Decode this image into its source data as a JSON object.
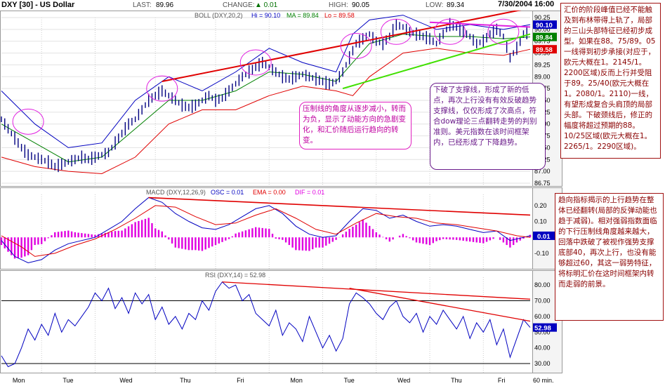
{
  "header": {
    "symbol": "DXY [30] - US Dollar",
    "last_label": "LAST:",
    "last": "89.96",
    "change_label": "CHANGE:",
    "change": "▲ 0.01",
    "high_label": "HIGH:",
    "high": "90.05",
    "low_label": "LOW:",
    "low": "89.34",
    "datetime": "7/30/2004 16:00"
  },
  "colors": {
    "price": "#000080",
    "upper_band": "#0000c0",
    "lower_band": "#e00000",
    "middle_band": "#008000",
    "macd": "#0000c0",
    "ema": "#e00000",
    "hist": "#e000e0",
    "rsi": "#0000c0",
    "trend_red": "#e00000",
    "trend_green": "#40e000",
    "trend_magenta": "#e020e0"
  },
  "annotations": {
    "top_right": "汇价的阶段峰值已经不能触及到布林带得上轨了，局部的三山头部特征已经初步成型。如果在88。75/89。05一线得到初步承接(对应于，欧元大概在1。2145/1。2200区域)反而上行并受阻于89。25/40(欧元大概在1。2080/1。2110)一线，有望形成复合头肩顶的局部头部。下破颈线后，修正的幅度将超过预期的88。10/25区域(欧元大概在1。2265/1。2290区域)。",
    "middle_right": "趋向指标揭示的上行趋势在整体已经翻转(局部的反弹动能也趋于减弱)。相对强弱指数面临的下行压制线角度越来越大，回落中跌破了被视作强势支撑底部40，再次上行，也没有能够超过60，其这一弱势特征，将标明汇价在这时间框架内转而走弱的前景。",
    "pink": "压制线的角度从逐步减小，转而为负，显示了动能方向的急剧变化，和汇价随后运行趋向的转变。",
    "purple": "下破了支撑线，形成了新的低点，再次上行没有有效反破趋势支撑线，仅仅形成了次高点，符合dow理论三点翻转走势的判别准则。美元指数在该时间框架内，已经形成了下降趋势。"
  },
  "chart_data": [
    {
      "type": "line",
      "title": "BOLL (DXY,20,2)",
      "legend": [
        {
          "name": "Hi",
          "value": "90.10",
          "color": "#0000c0"
        },
        {
          "name": "MA",
          "value": "89.84",
          "color": "#008000"
        },
        {
          "name": "Lo",
          "value": "89.58",
          "color": "#e00000"
        }
      ],
      "y_ticks": [
        "90.25",
        "90.00",
        "89.75",
        "89.50",
        "89.25",
        "89.00",
        "88.75",
        "88.50",
        "88.25",
        "88.00",
        "87.75",
        "87.50",
        "87.25",
        "87.00",
        "86.75"
      ],
      "ylim": [
        86.75,
        90.25
      ],
      "x_labels": [
        "Mon",
        "Tue",
        "Wed",
        "Thu",
        "Fri",
        "Mon",
        "Tue",
        "Wed",
        "Thu",
        "Fri"
      ],
      "x_unit": "60 min.",
      "value_labels": [
        {
          "text": "90.10",
          "value": 90.1,
          "color": "#0000c0"
        },
        {
          "text": "89.84",
          "value": 89.84,
          "color": "#008000"
        },
        {
          "text": "89.58",
          "value": 89.58,
          "color": "#e00000"
        }
      ],
      "price_path": [
        [
          0,
          88.1
        ],
        [
          2,
          87.9
        ],
        [
          4,
          87.7
        ],
        [
          6,
          87.5
        ],
        [
          8,
          87.35
        ],
        [
          10,
          87.3
        ],
        [
          12,
          87.25
        ],
        [
          14,
          87.2
        ],
        [
          16,
          87.1
        ],
        [
          18,
          87.15
        ],
        [
          20,
          87.2
        ],
        [
          22,
          87.25
        ],
        [
          24,
          87.3
        ],
        [
          26,
          87.25
        ],
        [
          28,
          87.3
        ],
        [
          30,
          87.35
        ],
        [
          32,
          87.4
        ],
        [
          34,
          87.6
        ],
        [
          36,
          87.8
        ],
        [
          38,
          88.0
        ],
        [
          40,
          88.1
        ],
        [
          42,
          88.3
        ],
        [
          44,
          88.5
        ],
        [
          46,
          88.6
        ],
        [
          48,
          88.7
        ],
        [
          50,
          88.6
        ],
        [
          52,
          88.5
        ],
        [
          54,
          88.4
        ],
        [
          56,
          88.35
        ],
        [
          58,
          88.4
        ],
        [
          60,
          88.5
        ],
        [
          62,
          88.6
        ],
        [
          64,
          88.5
        ],
        [
          66,
          88.55
        ],
        [
          68,
          88.7
        ],
        [
          70,
          88.85
        ],
        [
          72,
          89.0
        ],
        [
          74,
          89.1
        ],
        [
          76,
          89.2
        ],
        [
          78,
          89.3
        ],
        [
          80,
          89.2
        ],
        [
          82,
          89.1
        ],
        [
          84,
          89.0
        ],
        [
          86,
          88.95
        ],
        [
          88,
          89.0
        ],
        [
          90,
          89.05
        ],
        [
          92,
          89.0
        ],
        [
          94,
          88.95
        ],
        [
          96,
          88.9
        ],
        [
          98,
          88.85
        ],
        [
          100,
          88.9
        ],
        [
          102,
          89.1
        ],
        [
          104,
          89.4
        ],
        [
          106,
          89.7
        ],
        [
          108,
          89.8
        ],
        [
          110,
          89.9
        ],
        [
          112,
          89.75
        ],
        [
          114,
          89.7
        ],
        [
          116,
          89.85
        ],
        [
          118,
          90.1
        ],
        [
          120,
          90.05
        ],
        [
          122,
          89.95
        ],
        [
          124,
          89.9
        ],
        [
          126,
          89.85
        ],
        [
          128,
          89.8
        ],
        [
          130,
          89.7
        ],
        [
          132,
          89.9
        ],
        [
          134,
          90.1
        ],
        [
          136,
          90.05
        ],
        [
          138,
          89.95
        ],
        [
          140,
          89.85
        ],
        [
          142,
          89.7
        ],
        [
          144,
          89.75
        ],
        [
          146,
          89.9
        ],
        [
          148,
          90.0
        ],
        [
          150,
          89.85
        ],
        [
          152,
          89.4
        ],
        [
          154,
          89.6
        ],
        [
          156,
          89.9
        ],
        [
          158,
          89.96
        ]
      ],
      "upper_path": [
        [
          0,
          88.7
        ],
        [
          10,
          88.0
        ],
        [
          20,
          87.5
        ],
        [
          30,
          87.6
        ],
        [
          40,
          88.5
        ],
        [
          50,
          89.0
        ],
        [
          60,
          88.7
        ],
        [
          70,
          89.1
        ],
        [
          80,
          89.6
        ],
        [
          90,
          89.3
        ],
        [
          100,
          89.1
        ],
        [
          105,
          89.9
        ],
        [
          110,
          90.2
        ],
        [
          120,
          90.3
        ],
        [
          130,
          90.0
        ],
        [
          140,
          90.1
        ],
        [
          150,
          90.0
        ],
        [
          158,
          90.1
        ]
      ],
      "middle_path": [
        [
          0,
          88.0
        ],
        [
          10,
          87.6
        ],
        [
          20,
          87.2
        ],
        [
          30,
          87.3
        ],
        [
          40,
          87.9
        ],
        [
          50,
          88.5
        ],
        [
          60,
          88.5
        ],
        [
          70,
          88.7
        ],
        [
          80,
          89.1
        ],
        [
          90,
          89.05
        ],
        [
          100,
          88.9
        ],
        [
          105,
          89.3
        ],
        [
          110,
          89.7
        ],
        [
          120,
          89.9
        ],
        [
          130,
          89.85
        ],
        [
          140,
          89.85
        ],
        [
          150,
          89.8
        ],
        [
          158,
          89.84
        ]
      ],
      "lower_path": [
        [
          0,
          87.3
        ],
        [
          10,
          87.1
        ],
        [
          20,
          87.0
        ],
        [
          30,
          86.95
        ],
        [
          40,
          87.3
        ],
        [
          50,
          88.0
        ],
        [
          60,
          88.3
        ],
        [
          70,
          88.3
        ],
        [
          80,
          88.6
        ],
        [
          90,
          88.8
        ],
        [
          100,
          88.7
        ],
        [
          105,
          88.6
        ],
        [
          110,
          89.0
        ],
        [
          120,
          89.5
        ],
        [
          130,
          89.6
        ],
        [
          140,
          89.5
        ],
        [
          150,
          89.45
        ],
        [
          158,
          89.58
        ]
      ],
      "trendlines": [
        {
          "color": "red",
          "from": [
            48,
            88.9
          ],
          "to": [
            158,
            90.45
          ]
        },
        {
          "color": "green",
          "from": [
            102,
            88.75
          ],
          "to": [
            158,
            89.9
          ]
        },
        {
          "color": "magenta",
          "from": [
            128,
            90.15
          ],
          "to": [
            158,
            90.05
          ]
        }
      ]
    },
    {
      "type": "line",
      "title": "MACD (DXY,12,26,9)",
      "legend": [
        {
          "name": "OSC",
          "value": "0.01",
          "color": "#0000c0"
        },
        {
          "name": "EMA",
          "value": "0.00",
          "color": "#e00000"
        },
        {
          "name": "DIF",
          "value": "0.01",
          "color": "#e000e0"
        }
      ],
      "y_ticks": [
        "0.20",
        "0.10",
        "-0.10"
      ],
      "ylim": [
        -0.18,
        0.27
      ],
      "value_labels": [
        {
          "text": "0.01",
          "value": 0.01,
          "color": "#0000c0"
        }
      ],
      "macd_path": [
        [
          0,
          -0.02
        ],
        [
          4,
          -0.12
        ],
        [
          8,
          -0.16
        ],
        [
          12,
          -0.14
        ],
        [
          16,
          -0.08
        ],
        [
          20,
          -0.04
        ],
        [
          24,
          -0.02
        ],
        [
          28,
          0.0
        ],
        [
          32,
          0.05
        ],
        [
          36,
          0.1
        ],
        [
          40,
          0.18
        ],
        [
          44,
          0.25
        ],
        [
          48,
          0.22
        ],
        [
          52,
          0.15
        ],
        [
          56,
          0.1
        ],
        [
          60,
          0.06
        ],
        [
          64,
          0.05
        ],
        [
          68,
          0.08
        ],
        [
          72,
          0.13
        ],
        [
          76,
          0.18
        ],
        [
          80,
          0.2
        ],
        [
          84,
          0.15
        ],
        [
          88,
          0.07
        ],
        [
          92,
          0.02
        ],
        [
          96,
          0.0
        ],
        [
          100,
          0.01
        ],
        [
          104,
          0.1
        ],
        [
          108,
          0.18
        ],
        [
          112,
          0.17
        ],
        [
          116,
          0.12
        ],
        [
          120,
          0.14
        ],
        [
          124,
          0.1
        ],
        [
          128,
          0.07
        ],
        [
          132,
          0.08
        ],
        [
          136,
          0.07
        ],
        [
          140,
          0.05
        ],
        [
          144,
          0.03
        ],
        [
          148,
          0.04
        ],
        [
          152,
          -0.02
        ],
        [
          156,
          0.0
        ],
        [
          158,
          0.01
        ]
      ],
      "ema_path": [
        [
          0,
          0.01
        ],
        [
          6,
          -0.06
        ],
        [
          10,
          -0.12
        ],
        [
          16,
          -0.1
        ],
        [
          22,
          -0.05
        ],
        [
          28,
          -0.01
        ],
        [
          34,
          0.05
        ],
        [
          40,
          0.12
        ],
        [
          46,
          0.2
        ],
        [
          52,
          0.19
        ],
        [
          58,
          0.13
        ],
        [
          64,
          0.08
        ],
        [
          70,
          0.09
        ],
        [
          76,
          0.14
        ],
        [
          82,
          0.18
        ],
        [
          88,
          0.12
        ],
        [
          94,
          0.05
        ],
        [
          100,
          0.02
        ],
        [
          106,
          0.09
        ],
        [
          112,
          0.15
        ],
        [
          118,
          0.13
        ],
        [
          124,
          0.12
        ],
        [
          130,
          0.09
        ],
        [
          136,
          0.08
        ],
        [
          142,
          0.06
        ],
        [
          148,
          0.04
        ],
        [
          154,
          0.01
        ],
        [
          158,
          0.0
        ]
      ],
      "trendlines": [
        {
          "color": "red",
          "from": [
            44,
            0.25
          ],
          "to": [
            158,
            0.14
          ]
        }
      ]
    },
    {
      "type": "line",
      "title": "RSI (DXY,14)",
      "legend": [
        {
          "name": "",
          "value": "52.98",
          "color": "#0000c0"
        }
      ],
      "y_ticks": [
        "80.00",
        "70.00",
        "60.00",
        "50.00",
        "40.00",
        "30.00"
      ],
      "ylim": [
        26,
        85
      ],
      "guides": [
        70,
        30
      ],
      "value_labels": [
        {
          "text": "52.98",
          "value": 52.98,
          "color": "#0000c0"
        }
      ],
      "rsi_path": [
        [
          0,
          35
        ],
        [
          2,
          28
        ],
        [
          4,
          30
        ],
        [
          6,
          40
        ],
        [
          8,
          52
        ],
        [
          10,
          45
        ],
        [
          12,
          55
        ],
        [
          14,
          48
        ],
        [
          16,
          62
        ],
        [
          18,
          50
        ],
        [
          20,
          58
        ],
        [
          22,
          54
        ],
        [
          24,
          60
        ],
        [
          26,
          66
        ],
        [
          28,
          75
        ],
        [
          30,
          70
        ],
        [
          32,
          78
        ],
        [
          34,
          65
        ],
        [
          36,
          72
        ],
        [
          38,
          62
        ],
        [
          40,
          75
        ],
        [
          42,
          68
        ],
        [
          44,
          74
        ],
        [
          46,
          58
        ],
        [
          48,
          66
        ],
        [
          50,
          55
        ],
        [
          52,
          60
        ],
        [
          54,
          52
        ],
        [
          56,
          62
        ],
        [
          58,
          58
        ],
        [
          60,
          70
        ],
        [
          62,
          64
        ],
        [
          64,
          76
        ],
        [
          66,
          82
        ],
        [
          68,
          78
        ],
        [
          70,
          80
        ],
        [
          72,
          70
        ],
        [
          74,
          74
        ],
        [
          76,
          62
        ],
        [
          78,
          58
        ],
        [
          80,
          54
        ],
        [
          82,
          64
        ],
        [
          84,
          48
        ],
        [
          86,
          56
        ],
        [
          88,
          52
        ],
        [
          90,
          44
        ],
        [
          92,
          60
        ],
        [
          94,
          50
        ],
        [
          96,
          40
        ],
        [
          98,
          48
        ],
        [
          100,
          38
        ],
        [
          102,
          46
        ],
        [
          104,
          68
        ],
        [
          106,
          75
        ],
        [
          108,
          72
        ],
        [
          110,
          68
        ],
        [
          112,
          62
        ],
        [
          114,
          58
        ],
        [
          116,
          66
        ],
        [
          118,
          70
        ],
        [
          120,
          60
        ],
        [
          122,
          56
        ],
        [
          124,
          62
        ],
        [
          126,
          50
        ],
        [
          128,
          60
        ],
        [
          130,
          55
        ],
        [
          132,
          64
        ],
        [
          134,
          58
        ],
        [
          136,
          52
        ],
        [
          138,
          60
        ],
        [
          140,
          46
        ],
        [
          142,
          56
        ],
        [
          144,
          50
        ],
        [
          146,
          58
        ],
        [
          148,
          42
        ],
        [
          150,
          52
        ],
        [
          152,
          34
        ],
        [
          154,
          46
        ],
        [
          156,
          58
        ],
        [
          158,
          52.98
        ]
      ],
      "trendlines": [
        {
          "color": "red",
          "from": [
            66,
            82
          ],
          "to": [
            158,
            71
          ]
        },
        {
          "color": "red",
          "from": [
            104,
            78
          ],
          "to": [
            158,
            57
          ]
        }
      ]
    }
  ]
}
